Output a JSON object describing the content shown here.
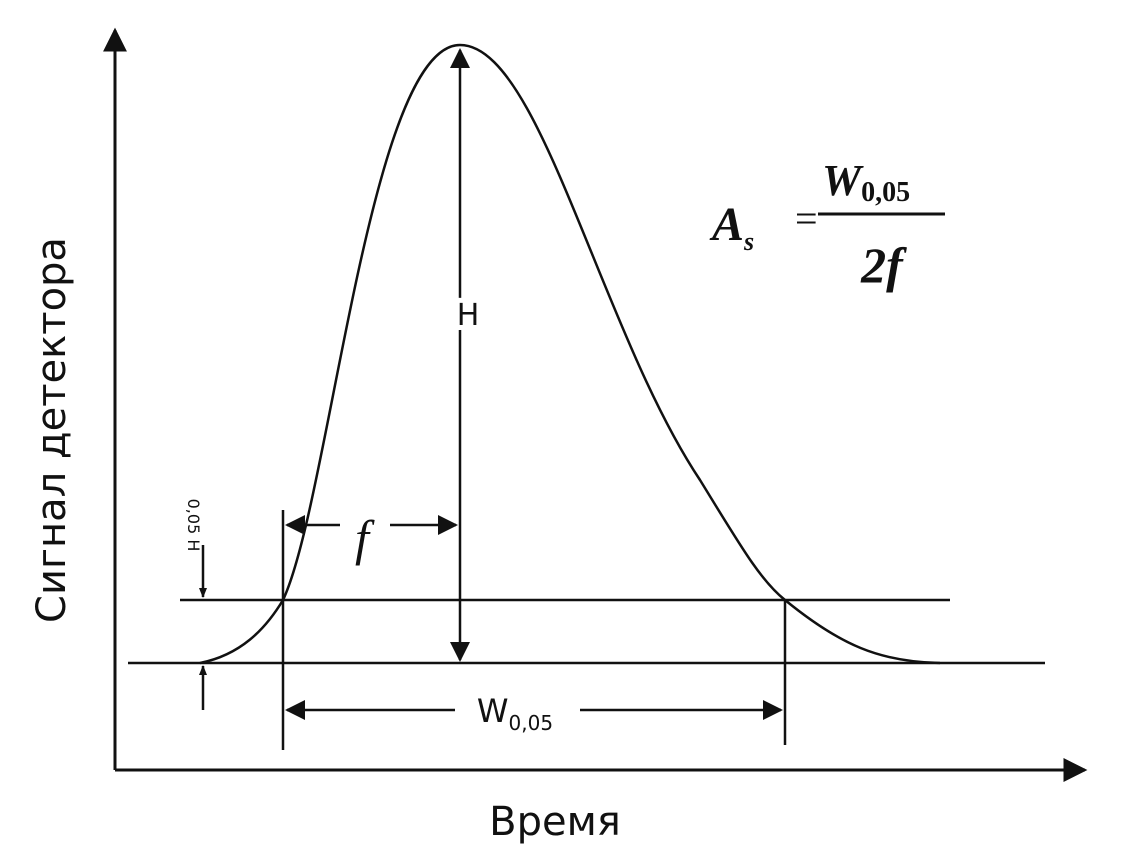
{
  "axes": {
    "y_label": "Сигнал детектора",
    "x_label": "Время"
  },
  "labels": {
    "height": "H",
    "half_width": "f",
    "threshold": "0,05 H",
    "width": {
      "main": "W",
      "sub": "0,05"
    }
  },
  "formula": {
    "lhs": {
      "main": "A",
      "sub": "s"
    },
    "equals": "=",
    "numerator": {
      "main": "W",
      "sub": "0,05"
    },
    "denominator": "2f"
  }
}
